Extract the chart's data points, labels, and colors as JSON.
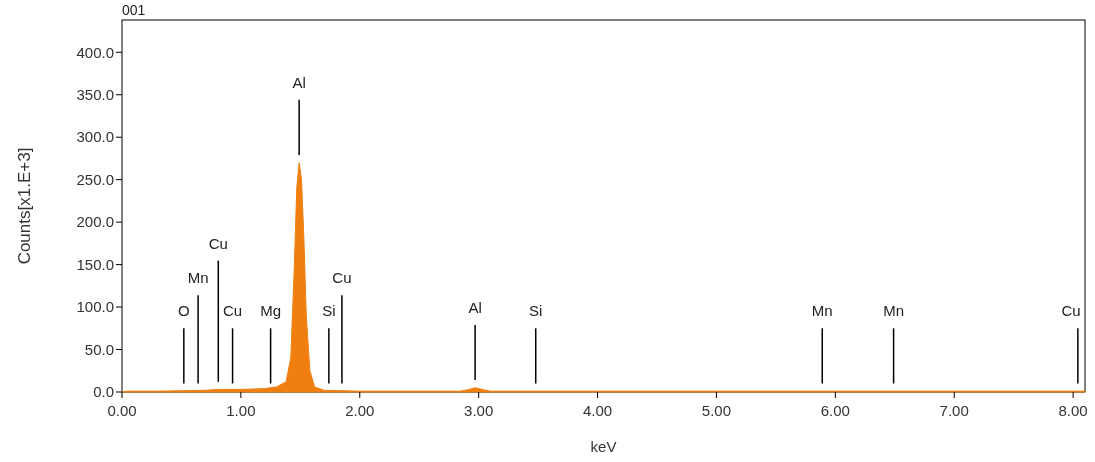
{
  "chart_data": {
    "type": "area",
    "title": "001",
    "xlabel": "keV",
    "ylabel": "Counts[x1.E+3]",
    "xlim": [
      0,
      8.1
    ],
    "xticks": [
      {
        "value": 0,
        "label": "0.00"
      },
      {
        "value": 1,
        "label": "1.00"
      },
      {
        "value": 2,
        "label": "2.00"
      },
      {
        "value": 3,
        "label": "3.00"
      },
      {
        "value": 4,
        "label": "4.00"
      },
      {
        "value": 5,
        "label": "5.00"
      },
      {
        "value": 6,
        "label": "6.00"
      },
      {
        "value": 7,
        "label": "7.00"
      },
      {
        "value": 8,
        "label": "8.00"
      }
    ],
    "ylim": [
      0,
      438
    ],
    "yticks": [
      {
        "value": 0,
        "label": "0.0"
      },
      {
        "value": 50,
        "label": "50.0"
      },
      {
        "value": 100,
        "label": "100.0"
      },
      {
        "value": 150,
        "label": "150.0"
      },
      {
        "value": 200,
        "label": "200.0"
      },
      {
        "value": 250,
        "label": "250.0"
      },
      {
        "value": 300,
        "label": "300.0"
      },
      {
        "value": 350,
        "label": "350.0"
      },
      {
        "value": 400,
        "label": "400.0"
      }
    ],
    "grid": false,
    "series": [
      {
        "color": "#f07f10",
        "x": [
          0,
          0.05,
          0.3,
          0.7,
          0.8,
          1.0,
          1.2,
          1.3,
          1.38,
          1.42,
          1.45,
          1.47,
          1.49,
          1.51,
          1.53,
          1.55,
          1.58,
          1.62,
          1.7,
          2.0,
          2.85,
          2.92,
          2.97,
          3.03,
          3.1,
          8.1
        ],
        "values": [
          0,
          1,
          1,
          2,
          3,
          3,
          4,
          6,
          12,
          40,
          150,
          240,
          270,
          250,
          180,
          90,
          25,
          6,
          2,
          1,
          1,
          3,
          5,
          3,
          1,
          1
        ]
      }
    ],
    "ref_lines": [
      {
        "axis": "x",
        "value": 0.52,
        "label": "O"
      },
      {
        "axis": "x",
        "value": 0.64,
        "label": "Mn"
      },
      {
        "axis": "x",
        "value": 0.81,
        "label": "Cu"
      },
      {
        "axis": "x",
        "value": 0.93,
        "label": "Cu"
      },
      {
        "axis": "x",
        "value": 1.25,
        "label": "Mg"
      },
      {
        "axis": "x",
        "value": 1.49,
        "label": "Al"
      },
      {
        "axis": "x",
        "value": 1.74,
        "label": "Si"
      },
      {
        "axis": "x",
        "value": 1.85,
        "label": "Cu"
      },
      {
        "axis": "x",
        "value": 2.97,
        "label": "Al"
      },
      {
        "axis": "x",
        "value": 3.48,
        "label": "Si"
      },
      {
        "axis": "x",
        "value": 5.89,
        "label": "Mn"
      },
      {
        "axis": "x",
        "value": 6.49,
        "label": "Mn"
      },
      {
        "axis": "x",
        "value": 8.04,
        "label": "Cu"
      }
    ]
  }
}
